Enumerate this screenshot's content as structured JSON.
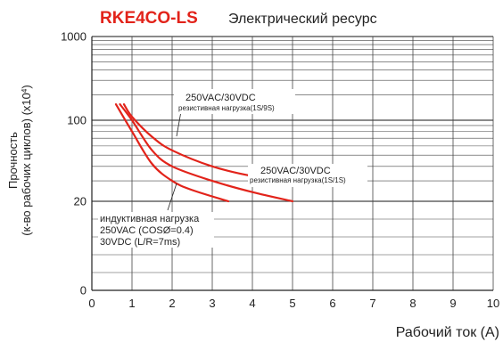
{
  "chart_data": {
    "type": "line",
    "model": "RKE4CO-LS",
    "title": "Электрический ресурс",
    "ylabel_line1": "Прочность",
    "ylabel_line2": "(к-во рабочих циклов) (х10",
    "ylabel_sup": "4",
    "ylabel_close": ")",
    "xlabel": "Рабочий ток (А)",
    "x_ticks": [
      "0",
      "1",
      "2",
      "3",
      "4",
      "5",
      "6",
      "7",
      "8",
      "9",
      "10"
    ],
    "y_ticks": [
      "0",
      "20",
      "100",
      "1000"
    ],
    "xlim": [
      0,
      10
    ],
    "ylim": [
      0,
      1000
    ],
    "grid": true,
    "line_color": "#e2231a",
    "series": [
      {
        "points": [
          [
            0.8,
            155
          ],
          [
            1.0,
            110
          ],
          [
            1.5,
            72
          ],
          [
            2.0,
            55
          ],
          [
            3.0,
            40
          ],
          [
            4.0,
            33
          ],
          [
            5.0,
            30
          ]
        ],
        "annotation": [
          "250VAC/30VDC",
          "резистивная нагрузка(1S/9S)"
        ]
      },
      {
        "points": [
          [
            0.7,
            155
          ],
          [
            1.0,
            100
          ],
          [
            1.5,
            55
          ],
          [
            2.0,
            40
          ],
          [
            3.0,
            30
          ],
          [
            4.0,
            24
          ],
          [
            5.0,
            20
          ]
        ],
        "annotation": [
          "250VAC/30VDC",
          "резистивная нагрузка(1S/1S)"
        ]
      },
      {
        "points": [
          [
            0.6,
            155
          ],
          [
            1.0,
            80
          ],
          [
            1.5,
            42
          ],
          [
            2.0,
            30
          ],
          [
            2.5,
            25
          ],
          [
            3.4,
            20
          ]
        ],
        "annotation": [
          "индуктивная нагрузка",
          "250VAC (COSØ=0.4)",
          "30VDC (L/R=7ms)"
        ]
      }
    ]
  }
}
